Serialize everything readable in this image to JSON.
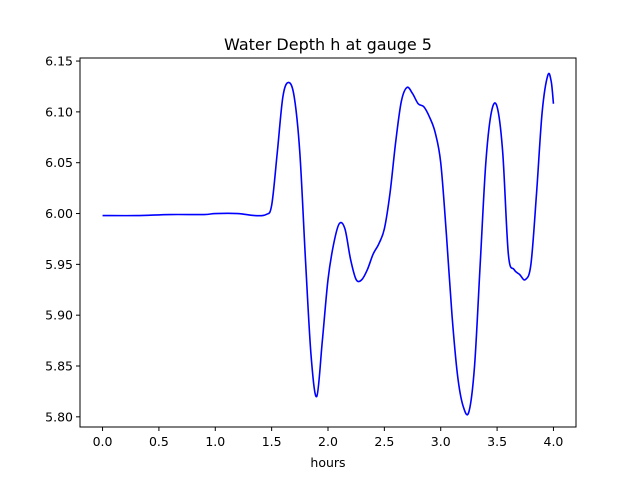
{
  "chart_data": {
    "type": "line",
    "title": "Water Depth h at gauge 5",
    "xlabel": "hours",
    "ylabel": "",
    "xlim": [
      -0.2,
      4.2
    ],
    "ylim": [
      5.79,
      6.153
    ],
    "x_ticks": [
      0.0,
      0.5,
      1.0,
      1.5,
      2.0,
      2.5,
      3.0,
      3.5,
      4.0
    ],
    "x_tick_labels": [
      "0.0",
      "0.5",
      "1.0",
      "1.5",
      "2.0",
      "2.5",
      "3.0",
      "3.5",
      "4.0"
    ],
    "y_ticks": [
      5.8,
      5.85,
      5.9,
      5.95,
      6.0,
      6.05,
      6.1,
      6.15
    ],
    "y_tick_labels": [
      "5.80",
      "5.85",
      "5.90",
      "5.95",
      "6.00",
      "6.05",
      "6.10",
      "6.15"
    ],
    "grid": false,
    "series": [
      {
        "color": "#0000ff",
        "x": [
          0.0,
          0.3,
          0.6,
          0.9,
          1.0,
          1.2,
          1.35,
          1.45,
          1.5,
          1.55,
          1.6,
          1.65,
          1.7,
          1.75,
          1.8,
          1.85,
          1.9,
          1.95,
          2.0,
          2.05,
          2.1,
          2.15,
          2.2,
          2.25,
          2.3,
          2.35,
          2.4,
          2.45,
          2.5,
          2.55,
          2.6,
          2.65,
          2.7,
          2.75,
          2.8,
          2.85,
          2.9,
          2.95,
          3.0,
          3.05,
          3.1,
          3.15,
          3.2,
          3.25,
          3.3,
          3.35,
          3.4,
          3.45,
          3.5,
          3.55,
          3.6,
          3.65,
          3.7,
          3.75,
          3.8,
          3.85,
          3.9,
          3.95,
          3.98,
          4.0
        ],
        "y": [
          5.998,
          5.998,
          5.999,
          5.999,
          6.0,
          6.0,
          5.998,
          5.999,
          6.008,
          6.06,
          6.115,
          6.129,
          6.115,
          6.06,
          5.955,
          5.86,
          5.82,
          5.875,
          5.935,
          5.97,
          5.99,
          5.985,
          5.955,
          5.935,
          5.935,
          5.945,
          5.96,
          5.97,
          5.985,
          6.02,
          6.07,
          6.11,
          6.124,
          6.118,
          6.108,
          6.105,
          6.095,
          6.08,
          6.05,
          5.98,
          5.9,
          5.84,
          5.81,
          5.805,
          5.85,
          5.95,
          6.05,
          6.1,
          6.105,
          6.06,
          5.96,
          5.945,
          5.94,
          5.935,
          5.95,
          6.02,
          6.1,
          6.136,
          6.13,
          6.108
        ]
      }
    ]
  }
}
